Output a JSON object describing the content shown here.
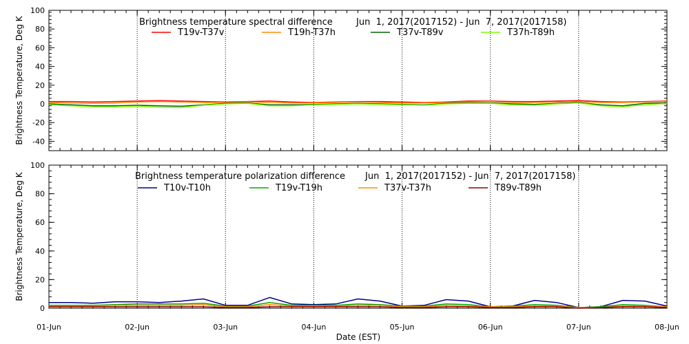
{
  "x_axis": {
    "ticks": [
      "01-Jun",
      "02-Jun",
      "03-Jun",
      "04-Jun",
      "05-Jun",
      "06-Jun",
      "07-Jun",
      "08-Jun"
    ],
    "label": "Date (EST)"
  },
  "chart_data": [
    {
      "type": "line",
      "title": "Brightness temperature spectral difference",
      "date_range": "Jun  1, 2017(2017152) - Jun  7, 2017(2017158)",
      "ylabel": "Brightness Temperature, Deg K",
      "ylim": [
        -50,
        100
      ],
      "yticks": [
        -40,
        -20,
        0,
        20,
        40,
        60,
        80,
        100
      ],
      "grid": "vertical dotted at day boundaries",
      "legend_position": "top",
      "x": [
        0,
        0.25,
        0.5,
        0.75,
        1,
        1.25,
        1.5,
        1.75,
        2,
        2.25,
        2.5,
        2.75,
        3,
        3.25,
        3.5,
        3.75,
        4,
        4.25,
        4.5,
        4.75,
        5,
        5.25,
        5.5,
        5.75,
        6,
        6.25,
        6.5,
        6.75,
        7
      ],
      "x_unit": "days since 01-Jun",
      "series": [
        {
          "name": "T19v-T37v",
          "color": "#ff0000",
          "values": [
            2.5,
            2.5,
            2,
            2.5,
            3,
            3.5,
            3,
            2.5,
            2,
            2.5,
            3,
            2,
            1.5,
            2,
            2.5,
            2.5,
            2,
            1.5,
            2,
            3,
            3,
            2.5,
            2.5,
            3,
            3.5,
            2.5,
            2,
            2.5,
            3
          ]
        },
        {
          "name": "T19h-T37h",
          "color": "#ff8c00",
          "values": [
            1.5,
            1,
            0.5,
            1,
            2,
            2.5,
            2,
            1.5,
            1.5,
            2,
            1.5,
            1,
            1,
            1.5,
            2,
            1.5,
            1,
            1,
            1.5,
            2,
            2.5,
            1.5,
            1.5,
            2,
            2.5,
            1.5,
            1.5,
            2,
            2.5
          ]
        },
        {
          "name": "T37v-T89v",
          "color": "#006400",
          "values": [
            0,
            -1,
            -2,
            -2,
            -1.5,
            -2,
            -2.5,
            -1,
            0.5,
            1,
            -1,
            -1,
            -0.5,
            0,
            0.5,
            0,
            -0.5,
            -1,
            0.5,
            1,
            1,
            0,
            -0.5,
            0.5,
            1.5,
            -1,
            -2,
            0.5,
            1
          ]
        },
        {
          "name": "T37h-T89h",
          "color": "#7cfc00",
          "values": [
            -1,
            -2,
            -3,
            -3,
            -2.5,
            -3.5,
            -4,
            -1.5,
            0,
            0.5,
            -2,
            -2,
            -1,
            -0.5,
            0,
            -0.5,
            -1,
            -1.5,
            0,
            0.5,
            0.5,
            -1,
            -1.5,
            0,
            1,
            -2,
            -3,
            -1,
            0.5
          ]
        }
      ]
    },
    {
      "type": "line",
      "title": "Brightness temperature polarization difference",
      "date_range": "Jun  1, 2017(2017152) - Jun  7, 2017(2017158)",
      "ylabel": "Brightness Temperature, Deg K",
      "ylim": [
        0,
        100
      ],
      "yticks": [
        0,
        20,
        40,
        60,
        80,
        100
      ],
      "grid": "vertical dotted at day boundaries",
      "legend_position": "top",
      "x": [
        0,
        0.25,
        0.5,
        0.75,
        1,
        1.25,
        1.5,
        1.75,
        2,
        2.25,
        2.5,
        2.75,
        3,
        3.25,
        3.5,
        3.75,
        4,
        4.25,
        4.5,
        4.75,
        5,
        5.25,
        5.5,
        5.75,
        6,
        6.25,
        6.5,
        6.75,
        7
      ],
      "x_unit": "days since 01-Jun",
      "series": [
        {
          "name": "T10v-T10h",
          "color": "#00008b",
          "values": [
            4,
            4,
            3.5,
            4.5,
            4.5,
            4,
            5,
            6.5,
            2,
            2,
            7.5,
            3,
            2.5,
            3,
            6.5,
            5,
            1.5,
            2,
            6,
            5,
            1,
            1.5,
            5.5,
            4,
            0.5,
            1,
            5.5,
            5,
            1.5
          ]
        },
        {
          "name": "T19v-T19h",
          "color": "#00aa00",
          "values": [
            2,
            2,
            2,
            2.5,
            3,
            3,
            3,
            3.5,
            1.5,
            1.5,
            4,
            2,
            2,
            2,
            3,
            2.5,
            1.5,
            1.5,
            3,
            2.5,
            1,
            1.5,
            2.5,
            2,
            0.5,
            1,
            2.5,
            2,
            1
          ]
        },
        {
          "name": "T37v-T37h",
          "color": "#ff8c00",
          "values": [
            1.5,
            1.5,
            1.5,
            2,
            2,
            2,
            2,
            2.5,
            1,
            1,
            2.5,
            1.5,
            1.5,
            1.5,
            2,
            2,
            1,
            1,
            2,
            1.5,
            1,
            1,
            1.5,
            1.5,
            0.5,
            0.5,
            1.5,
            1.5,
            1
          ]
        },
        {
          "name": "T89v-T89h",
          "color": "#8b0000",
          "values": [
            1,
            1,
            1,
            1,
            1,
            1,
            1,
            1,
            0.5,
            0.5,
            1,
            1,
            1,
            1,
            1,
            1,
            0.5,
            0.5,
            1,
            1,
            0.5,
            0.5,
            1,
            1,
            0,
            0.5,
            1,
            1,
            0.5
          ]
        }
      ]
    }
  ]
}
